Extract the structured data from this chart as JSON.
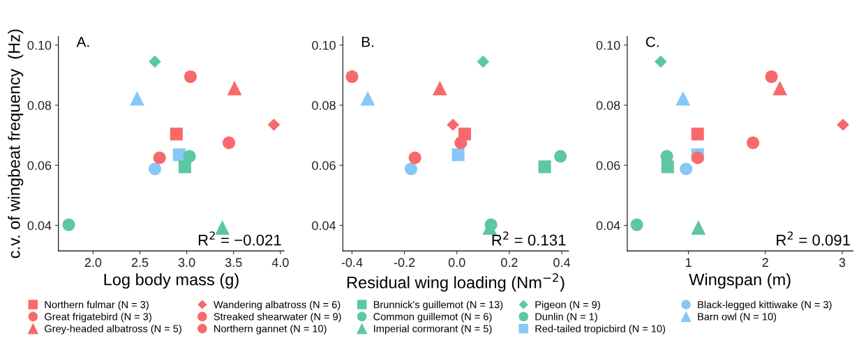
{
  "chart_data": [
    {
      "type": "scatter",
      "title": "A.",
      "xlabel": "Log body mass (g)",
      "ylabel": "c.v. of wingbeat frequency  (Hz)",
      "xlim": [
        1.63,
        4.04
      ],
      "xticks": [
        {
          "value": 2.0,
          "label": "2.0"
        },
        {
          "value": 2.5,
          "label": "2.5"
        },
        {
          "value": 3.0,
          "label": "3.0"
        },
        {
          "value": 3.5,
          "label": "3.5"
        },
        {
          "value": 4.0,
          "label": "4.0"
        }
      ],
      "ylim": [
        0.0315,
        0.1029
      ],
      "yticks": [
        {
          "value": 0.04,
          "label": "0.04"
        },
        {
          "value": 0.06,
          "label": "0.06"
        },
        {
          "value": 0.08,
          "label": "0.08"
        },
        {
          "value": 0.1,
          "label": "0.10"
        }
      ],
      "annotations": [
        "R$^{2}$ = −0.021"
      ],
      "grid": false,
      "legend": "bottom",
      "series": [
        {
          "name": "Northern fulmar (N = 3)",
          "color": "#f8696b",
          "marker": "square",
          "x": [
            2.89
          ],
          "values": [
            0.0704
          ]
        },
        {
          "name": "Great frigatebird (N = 3)",
          "color": "#f8696b",
          "marker": "circle",
          "x": [
            3.04
          ],
          "values": [
            0.0895
          ]
        },
        {
          "name": "Grey-headed albatross (N = 5)",
          "color": "#f8696b",
          "marker": "triangle",
          "x": [
            3.51
          ],
          "values": [
            0.0857
          ]
        },
        {
          "name": "Wandering albatross (N = 6)",
          "color": "#f8696b",
          "marker": "diamond",
          "x": [
            3.93
          ],
          "values": [
            0.0735
          ]
        },
        {
          "name": "Streaked shearwater (N = 9)",
          "color": "#f8696b",
          "marker": "circle",
          "x": [
            2.71
          ],
          "values": [
            0.0625
          ]
        },
        {
          "name": "Northern gannet (N = 10)",
          "color": "#f8696b",
          "marker": "circle",
          "x": [
            3.45
          ],
          "values": [
            0.0675
          ]
        },
        {
          "name": "Brunnick's guillemot (N = 13)",
          "color": "#5dc8a0",
          "marker": "square",
          "x": [
            2.98
          ],
          "values": [
            0.0595
          ]
        },
        {
          "name": "Common guillemot (N = 6)",
          "color": "#5dc8a0",
          "marker": "circle",
          "x": [
            3.03
          ],
          "values": [
            0.063
          ]
        },
        {
          "name": "Imperial cormorant (N = 5)",
          "color": "#5dc8a0",
          "marker": "triangle",
          "x": [
            3.38
          ],
          "values": [
            0.0393
          ]
        },
        {
          "name": "Pigeon (N = 9)",
          "color": "#5dc8a0",
          "marker": "diamond",
          "x": [
            2.66
          ],
          "values": [
            0.0945
          ]
        },
        {
          "name": "Dunlin (N = 1)",
          "color": "#5dc8a0",
          "marker": "circle",
          "x": [
            1.74
          ],
          "values": [
            0.0402
          ]
        },
        {
          "name": "Red-tailed tropicbird (N = 10)",
          "color": "#87c8f7",
          "marker": "square",
          "x": [
            2.92
          ],
          "values": [
            0.0635
          ]
        },
        {
          "name": "Black-legged kittiwake (N = 3)",
          "color": "#87c8f7",
          "marker": "circle",
          "x": [
            2.66
          ],
          "values": [
            0.0588
          ]
        },
        {
          "name": "Barn owl (N = 10)",
          "color": "#87c8f7",
          "marker": "triangle",
          "x": [
            2.47
          ],
          "values": [
            0.0823
          ]
        }
      ]
    },
    {
      "type": "scatter",
      "title": "B.",
      "xlabel": "Residual wing loading (Nm$^{−2}$)",
      "xlim": [
        -0.435,
        0.426
      ],
      "xticks": [
        {
          "value": -0.4,
          "label": "-0.4"
        },
        {
          "value": -0.2,
          "label": "-0.2"
        },
        {
          "value": 0.0,
          "label": "0.0"
        },
        {
          "value": 0.2,
          "label": "0.2"
        },
        {
          "value": 0.4,
          "label": "0.4"
        }
      ],
      "ylim": [
        0.0315,
        0.1029
      ],
      "yticks": [
        {
          "value": 0.04,
          "label": "0.04"
        },
        {
          "value": 0.06,
          "label": "0.06"
        },
        {
          "value": 0.08,
          "label": "0.08"
        },
        {
          "value": 0.1,
          "label": "0.10"
        }
      ],
      "annotations": [
        "R$^{2}$ = 0.131"
      ],
      "grid": false,
      "series": [
        {
          "color": "#f8696b",
          "marker": "square",
          "x": [
            0.03
          ],
          "values": [
            0.0704
          ]
        },
        {
          "color": "#f8696b",
          "marker": "circle",
          "x": [
            -0.4
          ],
          "values": [
            0.0895
          ]
        },
        {
          "color": "#f8696b",
          "marker": "triangle",
          "x": [
            -0.065
          ],
          "values": [
            0.0857
          ]
        },
        {
          "color": "#f8696b",
          "marker": "diamond",
          "x": [
            -0.015
          ],
          "values": [
            0.0735
          ]
        },
        {
          "color": "#f8696b",
          "marker": "circle",
          "x": [
            -0.16
          ],
          "values": [
            0.0625
          ]
        },
        {
          "color": "#f8696b",
          "marker": "circle",
          "x": [
            0.015
          ],
          "values": [
            0.0675
          ]
        },
        {
          "color": "#5dc8a0",
          "marker": "square",
          "x": [
            0.335
          ],
          "values": [
            0.0595
          ]
        },
        {
          "color": "#5dc8a0",
          "marker": "circle",
          "x": [
            0.395
          ],
          "values": [
            0.063
          ]
        },
        {
          "color": "#5dc8a0",
          "marker": "triangle",
          "x": [
            0.125
          ],
          "values": [
            0.0393
          ]
        },
        {
          "color": "#5dc8a0",
          "marker": "diamond",
          "x": [
            0.1
          ],
          "values": [
            0.0945
          ]
        },
        {
          "color": "#5dc8a0",
          "marker": "circle",
          "x": [
            0.13
          ],
          "values": [
            0.0402
          ]
        },
        {
          "color": "#87c8f7",
          "marker": "square",
          "x": [
            0.005
          ],
          "values": [
            0.0635
          ]
        },
        {
          "color": "#87c8f7",
          "marker": "circle",
          "x": [
            -0.175
          ],
          "values": [
            0.0588
          ]
        },
        {
          "color": "#87c8f7",
          "marker": "triangle",
          "x": [
            -0.34
          ],
          "values": [
            0.0823
          ]
        }
      ]
    },
    {
      "type": "scatter",
      "title": "C.",
      "xlabel": "Wingspan (m)",
      "xlim": [
        0.205,
        3.14
      ],
      "xticks": [
        1,
        2,
        3
      ],
      "ylim": [
        0.0315,
        0.1029
      ],
      "yticks": [
        {
          "value": 0.04,
          "label": "0.04"
        },
        {
          "value": 0.06,
          "label": "0.06"
        },
        {
          "value": 0.08,
          "label": "0.08"
        },
        {
          "value": 0.1,
          "label": "0.10"
        }
      ],
      "annotations": [
        "R$^{2}$ = 0.091"
      ],
      "grid": false,
      "series": [
        {
          "color": "#f8696b",
          "marker": "square",
          "x": [
            1.12
          ],
          "values": [
            0.0704
          ]
        },
        {
          "color": "#f8696b",
          "marker": "circle",
          "x": [
            2.08
          ],
          "values": [
            0.0895
          ]
        },
        {
          "color": "#f8696b",
          "marker": "triangle",
          "x": [
            2.19
          ],
          "values": [
            0.0857
          ]
        },
        {
          "color": "#f8696b",
          "marker": "diamond",
          "x": [
            3.01
          ],
          "values": [
            0.0735
          ]
        },
        {
          "color": "#f8696b",
          "marker": "circle",
          "x": [
            1.12
          ],
          "values": [
            0.0625
          ]
        },
        {
          "color": "#f8696b",
          "marker": "circle",
          "x": [
            1.84
          ],
          "values": [
            0.0675
          ]
        },
        {
          "color": "#5dc8a0",
          "marker": "square",
          "x": [
            0.73
          ],
          "values": [
            0.0595
          ]
        },
        {
          "color": "#5dc8a0",
          "marker": "circle",
          "x": [
            0.72
          ],
          "values": [
            0.063
          ]
        },
        {
          "color": "#5dc8a0",
          "marker": "triangle",
          "x": [
            1.13
          ],
          "values": [
            0.0393
          ]
        },
        {
          "color": "#5dc8a0",
          "marker": "diamond",
          "x": [
            0.64
          ],
          "values": [
            0.0945
          ]
        },
        {
          "color": "#5dc8a0",
          "marker": "circle",
          "x": [
            0.33
          ],
          "values": [
            0.0402
          ]
        },
        {
          "color": "#87c8f7",
          "marker": "square",
          "x": [
            1.12
          ],
          "values": [
            0.0635
          ]
        },
        {
          "color": "#87c8f7",
          "marker": "circle",
          "x": [
            0.97
          ],
          "values": [
            0.0588
          ]
        },
        {
          "color": "#87c8f7",
          "marker": "triangle",
          "x": [
            0.93
          ],
          "values": [
            0.0823
          ]
        }
      ]
    }
  ]
}
